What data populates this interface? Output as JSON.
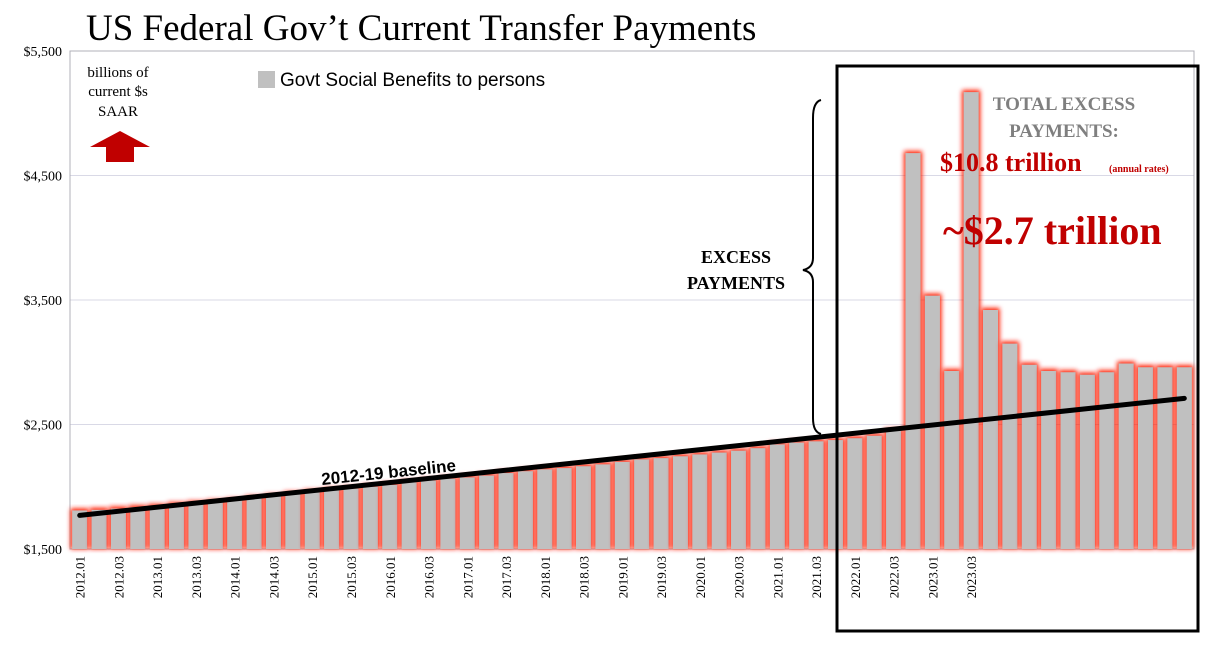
{
  "chart_data": {
    "type": "bar",
    "title": "US Federal Gov’t Current Transfer Payments",
    "unit_note": [
      "billions of",
      "current $s",
      "SAAR"
    ],
    "legend": "Govt Social Benefits to persons",
    "ylim": [
      1500,
      5500
    ],
    "yticks": [
      1500,
      2500,
      3500,
      4500,
      5500
    ],
    "ytick_labels": [
      "$1,500",
      "$2,500",
      "$3,500",
      "$4,500",
      "$5,500"
    ],
    "xtick_labels": [
      "2012.01",
      "2012.03",
      "2013.01",
      "2013.03",
      "2014.01",
      "2014.03",
      "2015.01",
      "2015.03",
      "2016.01",
      "2016.03",
      "2017.01",
      "2017.03",
      "2018.01",
      "2018.03",
      "2019.01",
      "2019.03",
      "2020.01",
      "2020.03",
      "2021.01",
      "2021.03",
      "2022.01",
      "2022.03",
      "2023.01",
      "2023.03"
    ],
    "values": [
      1810,
      1815,
      1825,
      1835,
      1845,
      1860,
      1870,
      1880,
      1890,
      1910,
      1925,
      1945,
      1960,
      1975,
      1985,
      2000,
      2015,
      2035,
      2050,
      2065,
      2075,
      2090,
      2110,
      2125,
      2140,
      2150,
      2165,
      2180,
      2200,
      2220,
      2230,
      2245,
      2260,
      2275,
      2290,
      2310,
      2340,
      2355,
      2365,
      2375,
      2390,
      2410,
      2450,
      4680,
      3535,
      2930,
      5170,
      3420,
      3150,
      2980,
      2930,
      2920,
      2900,
      2920,
      2990,
      2960,
      2960,
      2960
    ],
    "baseline": {
      "label": "2012-19 baseline",
      "start": 1770,
      "end": 2710
    },
    "annotations": {
      "excess_label": [
        "EXCESS",
        "PAYMENTS"
      ],
      "total_label": [
        "TOTAL EXCESS",
        "PAYMENTS:"
      ],
      "total_value": "$10.8 trillion",
      "total_note": "(annual rates)",
      "approx_value": "~$2.7 trillion"
    },
    "colors": {
      "bar_fill": "#c0c0c0",
      "bar_glow": "#ff1a00",
      "baseline": "#000000",
      "annotation_red": "#c00000",
      "annotation_gray": "#7f7f7f",
      "arrow": "#c00000",
      "grid": "#d9d9e6"
    },
    "grid": true
  }
}
